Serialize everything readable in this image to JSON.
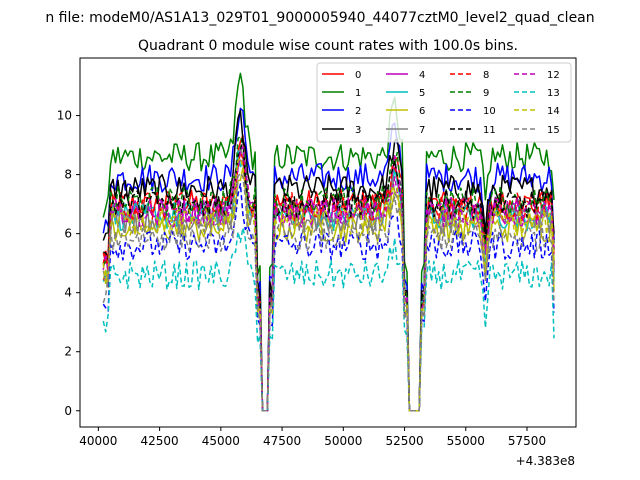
{
  "chart_data": {
    "type": "line",
    "suptitle": "n file: modeM0/AS1A13_029T01_9000005940_44077cztM0_level2_quad_clean",
    "title": "Quadrant 0 module wise count rates with 100.0s bins.",
    "xlabel": "",
    "ylabel": "",
    "x_offset_text": "+4.383e8",
    "xlim": [
      39250,
      59500
    ],
    "ylim": [
      -0.55,
      11.95
    ],
    "x_ticks": [
      40000,
      42500,
      45000,
      47500,
      50000,
      52500,
      55000,
      57500
    ],
    "x_tick_labels": [
      "40000",
      "42500",
      "45000",
      "47500",
      "50000",
      "52500",
      "55000",
      "57500"
    ],
    "y_ticks": [
      0,
      2,
      4,
      6,
      8,
      10
    ],
    "y_tick_labels": [
      "0",
      "2",
      "4",
      "6",
      "8",
      "10"
    ],
    "x_start": 40200,
    "x_end": 58600,
    "bin_width": 100,
    "gaps": [
      [
        46700,
        46900
      ],
      [
        52700,
        53100
      ]
    ],
    "legend_position": "top-right",
    "series": [
      {
        "name": "0",
        "color": "#ff0000",
        "style": "solid",
        "level": 7.0
      },
      {
        "name": "1",
        "color": "#008000",
        "style": "solid",
        "level": 8.6
      },
      {
        "name": "2",
        "color": "#0000ff",
        "style": "solid",
        "level": 7.9
      },
      {
        "name": "3",
        "color": "#000000",
        "style": "solid",
        "level": 7.5
      },
      {
        "name": "4",
        "color": "#bf00bf",
        "style": "solid",
        "level": 6.8
      },
      {
        "name": "5",
        "color": "#00bfbf",
        "style": "solid",
        "level": 6.6
      },
      {
        "name": "6",
        "color": "#bfbf00",
        "style": "solid",
        "level": 6.2
      },
      {
        "name": "7",
        "color": "#808080",
        "style": "solid",
        "level": 6.5
      },
      {
        "name": "8",
        "color": "#ff0000",
        "style": "dashed",
        "level": 6.9
      },
      {
        "name": "9",
        "color": "#008000",
        "style": "dashed",
        "level": 7.1
      },
      {
        "name": "10",
        "color": "#0000ff",
        "style": "dashed",
        "level": 5.6
      },
      {
        "name": "11",
        "color": "#000000",
        "style": "dashed",
        "level": 7.0
      },
      {
        "name": "12",
        "color": "#bf00bf",
        "style": "dashed",
        "level": 6.7
      },
      {
        "name": "13",
        "color": "#00bfbf",
        "style": "dashed",
        "level": 4.6
      },
      {
        "name": "14",
        "color": "#bfbf00",
        "style": "dashed",
        "level": 6.4
      },
      {
        "name": "15",
        "color": "#808080",
        "style": "dashed",
        "level": 5.9
      }
    ]
  }
}
